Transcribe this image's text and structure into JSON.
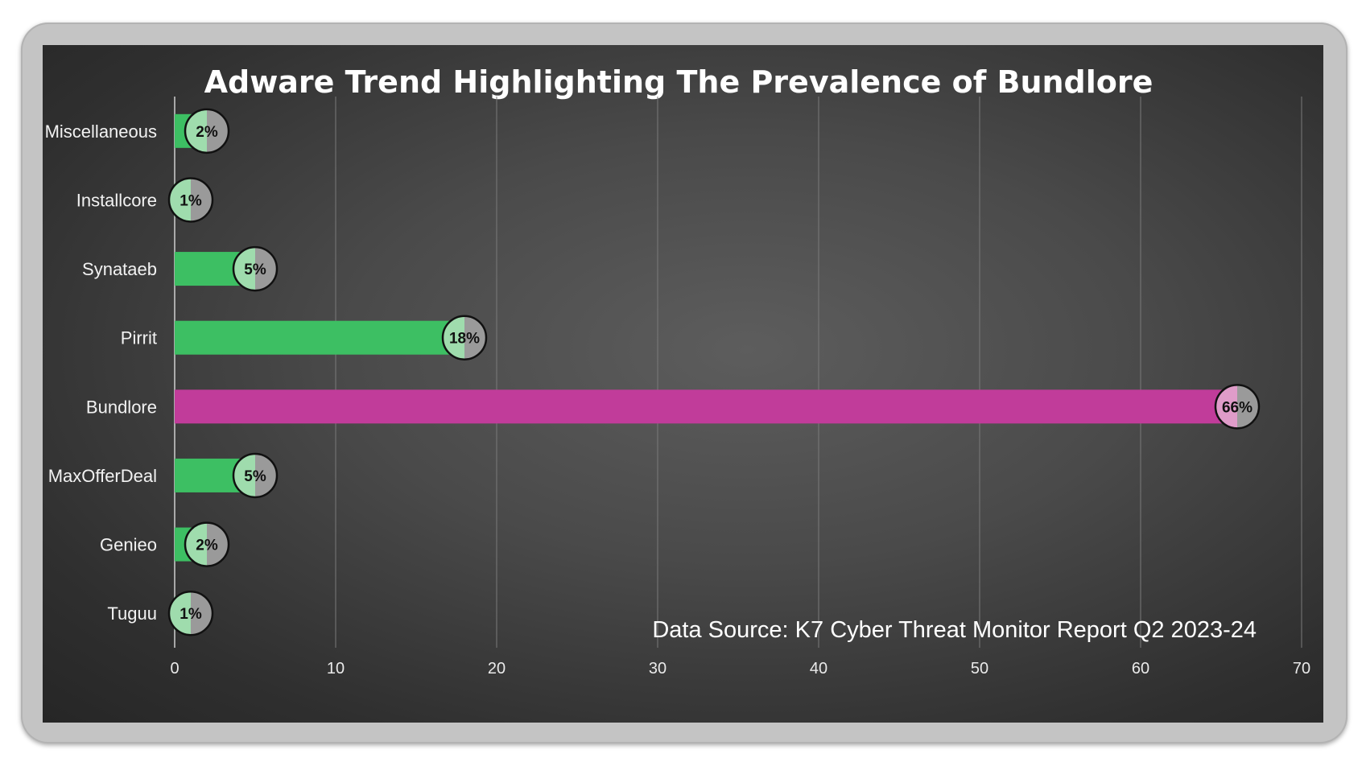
{
  "chart_data": {
    "type": "bar",
    "orientation": "horizontal",
    "title": "Adware Trend Highlighting The Prevalence of Bundlore",
    "categories": [
      "Miscellaneous",
      "Installcore",
      "Synataeb",
      "Pirrit",
      "Bundlore",
      "MaxOfferDeal",
      "Genieo",
      "Tuguu"
    ],
    "values": [
      2,
      1,
      5,
      18,
      66,
      5,
      2,
      1
    ],
    "data_labels": [
      "2%",
      "1%",
      "5%",
      "18%",
      "66%",
      "5%",
      "2%",
      "1%"
    ],
    "highlight": "Bundlore",
    "xlim": [
      0,
      70
    ],
    "xticks": [
      "0",
      "10",
      "20",
      "30",
      "40",
      "50",
      "60",
      "70"
    ],
    "grid": "vertical",
    "annotation": "Data Source: K7 Cyber Threat Monitor Report Q2 2023-24",
    "colors": {
      "bar": "#3dbf63",
      "highlight_bar": "#c13c9a",
      "bubble_left": "#9fdcad",
      "bubble_right": "#9a9a9a",
      "highlight_bubble_left": "#df9cc9"
    }
  }
}
